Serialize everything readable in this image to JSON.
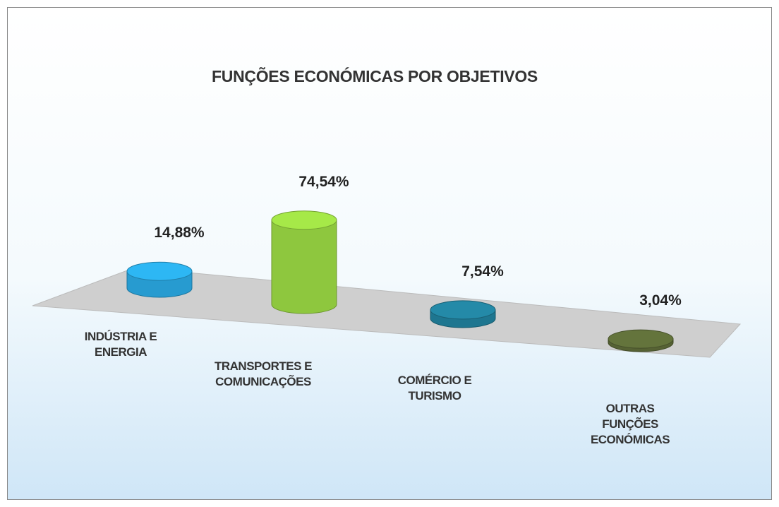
{
  "chart_data": {
    "type": "bar3d",
    "title": "FUNÇÕES ECONÓMICAS POR OBJETIVOS",
    "categories": [
      "INDÚSTRIA E\nENERGIA",
      "TRANSPORTES E\nCOMUNICAÇÕES",
      "COMÉRCIO E\nTURISMO",
      "OUTRAS\nFUNÇÕES\nECONÓMICAS"
    ],
    "values": [
      14.88,
      74.54,
      7.54,
      3.04
    ],
    "value_labels": [
      "14,88%",
      "74,54%",
      "7,54%",
      "3,04%"
    ],
    "colors": [
      "#2aa9e2",
      "#9ad843",
      "#21809c",
      "#5d6b38"
    ]
  }
}
